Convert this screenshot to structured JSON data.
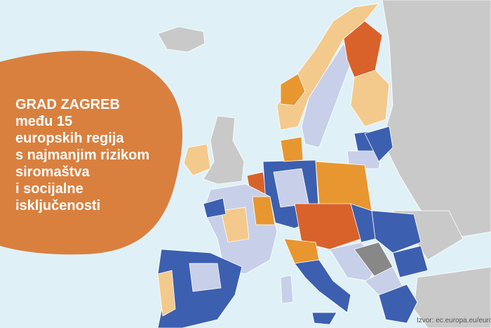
{
  "headline": {
    "lines": [
      "GRAD ZAGREB",
      "među 15",
      "europskih regija",
      "s najmanjim rizikom",
      "siromaštva",
      "i socijalne",
      "isključenosti"
    ]
  },
  "source": "Izvor: ec.europa.eu/eurostat"
}
